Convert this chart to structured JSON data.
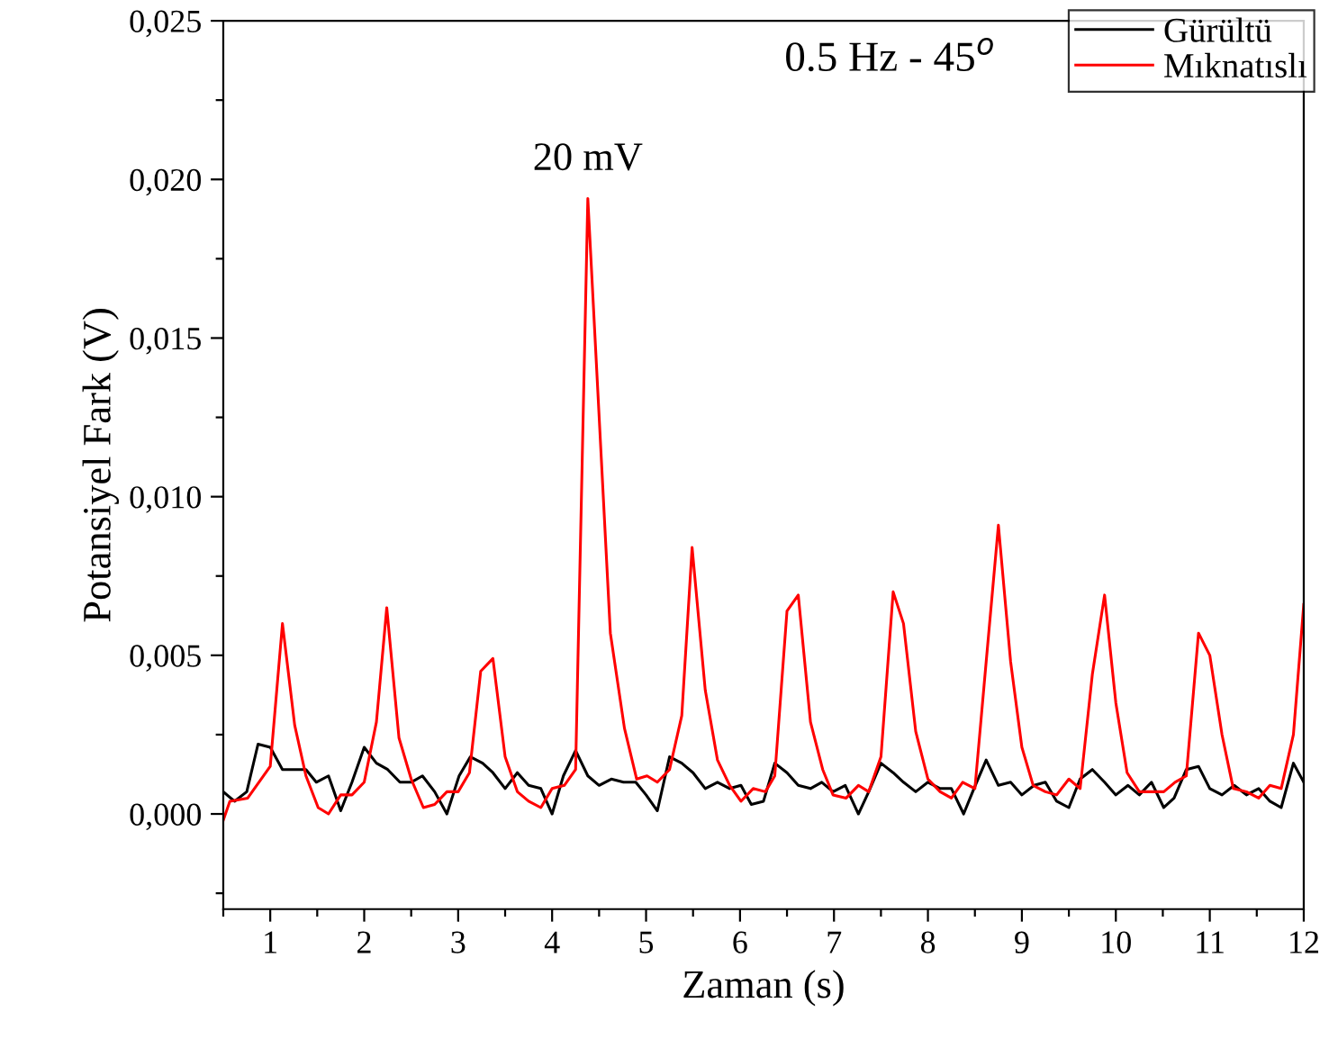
{
  "chart_data": {
    "type": "line",
    "xlabel": "Zaman (s)",
    "ylabel": "Potansiyel Fark (V)",
    "xlim": [
      0.5,
      12
    ],
    "ylim": [
      -0.003,
      0.025
    ],
    "xticks": [
      {
        "value": 0.5,
        "label": null
      },
      1,
      {
        "value": 1.5,
        "label": null
      },
      2,
      {
        "value": 2.5,
        "label": null
      },
      3,
      {
        "value": 3.5,
        "label": null
      },
      4,
      {
        "value": 4.5,
        "label": null
      },
      5,
      {
        "value": 5.5,
        "label": null
      },
      6,
      {
        "value": 6.5,
        "label": null
      },
      7,
      {
        "value": 7.5,
        "label": null
      },
      8,
      {
        "value": 8.5,
        "label": null
      },
      9,
      {
        "value": 9.5,
        "label": null
      },
      10,
      {
        "value": 10.5,
        "label": null
      },
      11,
      {
        "value": 11.5,
        "label": null
      },
      12
    ],
    "yticks": [
      {
        "value": -0.0025,
        "label": null
      },
      {
        "value": 0,
        "label": "0,000"
      },
      {
        "value": 0.0025,
        "label": null
      },
      {
        "value": 0.005,
        "label": "0,005"
      },
      {
        "value": 0.0075,
        "label": null
      },
      {
        "value": 0.01,
        "label": "0,010"
      },
      {
        "value": 0.0125,
        "label": null
      },
      {
        "value": 0.015,
        "label": "0,015"
      },
      {
        "value": 0.0175,
        "label": null
      },
      {
        "value": 0.02,
        "label": "0,020"
      },
      {
        "value": 0.0225,
        "label": null
      },
      {
        "value": 0.025,
        "label": "0,025"
      }
    ],
    "grid": false,
    "legend": "top right",
    "marker": "none",
    "line_style": "solid",
    "annotations": [
      "0.5 Hz - 45$^{o}$",
      {
        "text": "20 mV",
        "x": 4.38,
        "y": 0.0194
      }
    ],
    "series": [
      {
        "name": "Gürültü",
        "color": "#000000",
        "x": [
          0.5,
          0.62,
          0.75,
          0.87,
          1.0,
          1.13,
          1.26,
          1.38,
          1.49,
          1.62,
          1.75,
          1.87,
          2.0,
          2.13,
          2.25,
          2.38,
          2.5,
          2.62,
          2.75,
          2.88,
          3.01,
          3.13,
          3.26,
          3.37,
          3.5,
          3.63,
          3.75,
          3.88,
          4.0,
          4.12,
          4.25,
          4.38,
          4.5,
          4.63,
          4.76,
          4.89,
          5.0,
          5.12,
          5.25,
          5.38,
          5.5,
          5.63,
          5.76,
          5.89,
          6.01,
          6.12,
          6.25,
          6.37,
          6.5,
          6.62,
          6.75,
          6.87,
          6.99,
          7.12,
          7.26,
          7.37,
          7.5,
          7.63,
          7.74,
          7.87,
          8.0,
          8.13,
          8.25,
          8.38,
          8.49,
          8.62,
          8.75,
          8.88,
          9.0,
          9.13,
          9.25,
          9.37,
          9.5,
          9.62,
          9.75,
          9.88,
          10.0,
          10.13,
          10.25,
          10.38,
          10.51,
          10.62,
          10.75,
          10.88,
          11.0,
          11.13,
          11.26,
          11.39,
          11.52,
          11.64,
          11.76,
          11.89,
          12.0
        ],
        "values": [
          0.0007,
          0.0004,
          0.0007,
          0.0022,
          0.0021,
          0.0014,
          0.0014,
          0.0014,
          0.001,
          0.0012,
          0.0001,
          0.001,
          0.0021,
          0.0016,
          0.0014,
          0.001,
          0.001,
          0.0012,
          0.0007,
          0.0,
          0.0012,
          0.0018,
          0.0016,
          0.0013,
          0.0008,
          0.0013,
          0.0009,
          0.0008,
          0.0,
          0.0012,
          0.002,
          0.0012,
          0.0009,
          0.0011,
          0.001,
          0.001,
          0.0006,
          0.0001,
          0.0018,
          0.0016,
          0.0013,
          0.0008,
          0.001,
          0.0008,
          0.0009,
          0.0003,
          0.0004,
          0.0016,
          0.0013,
          0.0009,
          0.0008,
          0.001,
          0.0007,
          0.0009,
          0.0,
          0.0007,
          0.0016,
          0.0013,
          0.001,
          0.0007,
          0.001,
          0.0008,
          0.0008,
          0.0,
          0.0008,
          0.0017,
          0.0009,
          0.001,
          0.0006,
          0.0009,
          0.001,
          0.0004,
          0.0002,
          0.0011,
          0.0014,
          0.001,
          0.0006,
          0.0009,
          0.0006,
          0.001,
          0.0002,
          0.0005,
          0.0014,
          0.0015,
          0.0008,
          0.0006,
          0.0009,
          0.0006,
          0.0008,
          0.0004,
          0.0002,
          0.0016,
          0.001
        ]
      },
      {
        "name": "Mıknatıslı",
        "color": "#ff0000",
        "x": [
          0.5,
          0.57,
          0.76,
          1.0,
          1.13,
          1.26,
          1.38,
          1.51,
          1.62,
          1.75,
          1.87,
          2.0,
          2.13,
          2.24,
          2.37,
          2.5,
          2.63,
          2.75,
          2.88,
          3.0,
          3.12,
          3.24,
          3.37,
          3.5,
          3.63,
          3.75,
          3.88,
          4.0,
          4.13,
          4.25,
          4.38,
          4.62,
          4.77,
          4.9,
          5.01,
          5.12,
          5.25,
          5.38,
          5.49,
          5.63,
          5.76,
          5.89,
          6.01,
          6.14,
          6.27,
          6.37,
          6.5,
          6.62,
          6.75,
          6.88,
          6.99,
          7.13,
          7.26,
          7.37,
          7.5,
          7.63,
          7.74,
          7.87,
          8.0,
          8.13,
          8.25,
          8.37,
          8.5,
          8.62,
          8.75,
          8.88,
          9.0,
          9.12,
          9.25,
          9.37,
          9.5,
          9.62,
          9.75,
          9.88,
          10.0,
          10.12,
          10.25,
          10.38,
          10.51,
          10.63,
          10.75,
          10.88,
          11.0,
          11.13,
          11.25,
          11.39,
          11.52,
          11.64,
          11.76,
          11.89,
          12.0
        ],
        "values": [
          -0.0002,
          0.0004,
          0.0005,
          0.0015,
          0.006,
          0.0028,
          0.0012,
          0.0002,
          0.0,
          0.0006,
          0.0006,
          0.001,
          0.0029,
          0.0065,
          0.0024,
          0.0011,
          0.0002,
          0.0003,
          0.0007,
          0.0007,
          0.0013,
          0.0045,
          0.0049,
          0.0018,
          0.0007,
          0.0004,
          0.0002,
          0.0008,
          0.0009,
          0.0014,
          0.0194,
          0.0057,
          0.0027,
          0.0011,
          0.0012,
          0.001,
          0.0014,
          0.0031,
          0.0084,
          0.0039,
          0.0017,
          0.0009,
          0.0004,
          0.0008,
          0.0007,
          0.0012,
          0.0064,
          0.0069,
          0.0029,
          0.0014,
          0.0006,
          0.0005,
          0.0009,
          0.0007,
          0.0018,
          0.007,
          0.006,
          0.0026,
          0.0011,
          0.0007,
          0.0005,
          0.001,
          0.0008,
          0.0048,
          0.0091,
          0.0048,
          0.0021,
          0.0009,
          0.0007,
          0.0006,
          0.0011,
          0.0008,
          0.0044,
          0.0069,
          0.0035,
          0.0013,
          0.0007,
          0.0007,
          0.0007,
          0.001,
          0.0012,
          0.0057,
          0.005,
          0.0025,
          0.0008,
          0.0007,
          0.0005,
          0.0009,
          0.0008,
          0.0025,
          0.0066
        ]
      }
    ]
  }
}
